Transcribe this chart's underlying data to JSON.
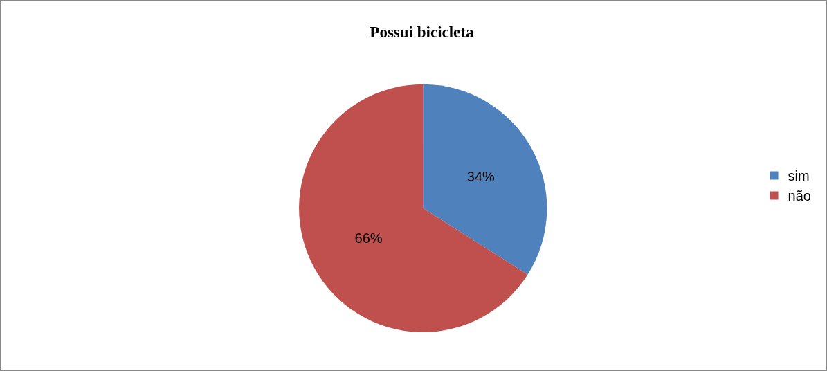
{
  "chart_data": {
    "type": "pie",
    "title": "Possui bicicleta",
    "categories": [
      "sim",
      "não"
    ],
    "values": [
      34,
      66
    ],
    "colors": [
      "#4f81bd",
      "#c0504d"
    ],
    "value_labels": [
      "34%",
      "66%"
    ],
    "legend": "right"
  }
}
